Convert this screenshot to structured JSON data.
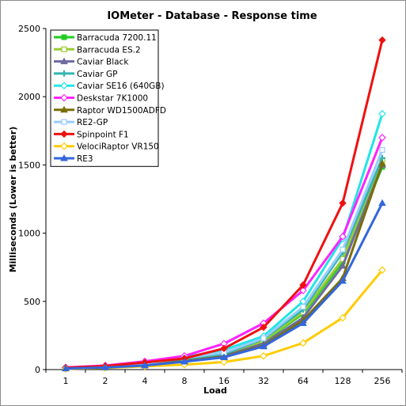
{
  "chart_data": {
    "type": "line",
    "title": "IOMeter - Database - Response time",
    "xlabel": "Load",
    "ylabel": "Milliseconds (Lower is better)",
    "categories": [
      "1",
      "2",
      "4",
      "8",
      "16",
      "32",
      "64",
      "128",
      "256"
    ],
    "ylim": [
      0,
      2500
    ],
    "yticks": [
      0,
      500,
      1000,
      1500,
      2000,
      2500
    ],
    "grid": false,
    "legend": "top-left",
    "series": [
      {
        "name": "Barracuda 7200.11",
        "color": "#22cc22",
        "marker": "square-filled",
        "values": [
          10,
          18,
          38,
          72,
          105,
          205,
          410,
          790,
          1485
        ]
      },
      {
        "name": "Barracuda ES.2",
        "color": "#99cc33",
        "marker": "square-open",
        "values": [
          11,
          19,
          40,
          75,
          110,
          210,
          420,
          810,
          1530
        ]
      },
      {
        "name": "Caviar Black",
        "color": "#6e6a9e",
        "marker": "triangle",
        "values": [
          9,
          17,
          36,
          68,
          100,
          190,
          380,
          760,
          1500
        ]
      },
      {
        "name": "Caviar GP",
        "color": "#33b5b0",
        "marker": "plus",
        "values": [
          11,
          20,
          42,
          78,
          115,
          225,
          440,
          860,
          1550
        ]
      },
      {
        "name": "Caviar SE16 (640GB)",
        "color": "#22e5e5",
        "marker": "diamond-open",
        "values": [
          13,
          24,
          48,
          90,
          145,
          245,
          500,
          960,
          1875
        ]
      },
      {
        "name": "Deskstar 7K1000",
        "color": "#ff22ff",
        "marker": "diamond-open",
        "values": [
          16,
          30,
          60,
          100,
          190,
          340,
          580,
          975,
          1700
        ]
      },
      {
        "name": "Raptor WD1500ADFD",
        "color": "#7a6e0a",
        "marker": "triangle",
        "values": [
          9,
          16,
          34,
          62,
          95,
          175,
          360,
          670,
          1510
        ]
      },
      {
        "name": "RE2-GP",
        "color": "#99ccff",
        "marker": "square-open",
        "values": [
          12,
          22,
          45,
          85,
          125,
          230,
          460,
          880,
          1610
        ]
      },
      {
        "name": "Spinpoint F1",
        "color": "#ee1111",
        "marker": "diamond-filled",
        "values": [
          14,
          26,
          52,
          82,
          155,
          310,
          620,
          1220,
          2415
        ]
      },
      {
        "name": "VelociRaptor VR150",
        "color": "#ffcc00",
        "marker": "diamond-open",
        "values": [
          6,
          12,
          24,
          36,
          55,
          100,
          195,
          380,
          730
        ]
      },
      {
        "name": "RE3",
        "color": "#3366dd",
        "marker": "triangle",
        "values": [
          8,
          15,
          30,
          58,
          90,
          170,
          340,
          650,
          1220
        ]
      }
    ]
  }
}
